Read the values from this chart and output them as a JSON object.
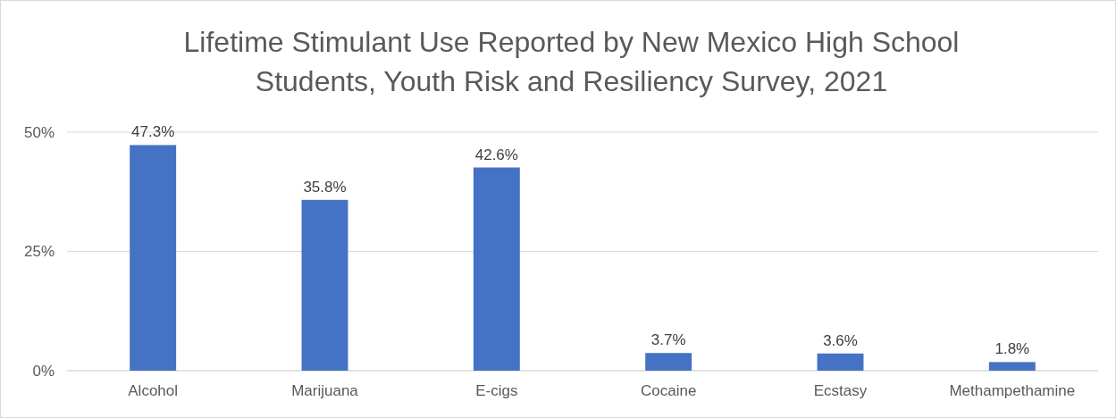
{
  "chart_data": {
    "type": "bar",
    "title": "Lifetime Stimulant Use Reported by New Mexico High School Students, Youth Risk and Resiliency Survey, 2021",
    "categories": [
      "Alcohol",
      "Marijuana",
      "E-cigs",
      "Cocaine",
      "Ecstasy",
      "Methampethamine"
    ],
    "values": [
      47.3,
      35.8,
      42.6,
      3.7,
      3.6,
      1.8
    ],
    "value_labels": [
      "47.3%",
      "35.8%",
      "42.6%",
      "3.7%",
      "3.6%",
      "1.8%"
    ],
    "color": "#4472c4",
    "ylim": [
      0,
      50
    ],
    "yticks": [
      {
        "value": 0,
        "label": "0%"
      },
      {
        "value": 25,
        "label": "25%"
      },
      {
        "value": 50,
        "label": "50%"
      }
    ],
    "grid": "y"
  }
}
